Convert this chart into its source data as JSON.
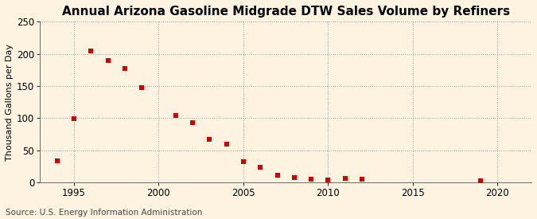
{
  "title": "Annual Arizona Gasoline Midgrade DTW Sales Volume by Refiners",
  "ylabel": "Thousand Gallons per Day",
  "source": "Source: U.S. Energy Information Administration",
  "background_color": "#fdf3e0",
  "marker_color": "#cc0000",
  "years": [
    1994,
    1995,
    1996,
    1997,
    1998,
    1999,
    2001,
    2002,
    2003,
    2004,
    2005,
    2006,
    2007,
    2008,
    2009,
    2010,
    2011,
    2012,
    2019
  ],
  "values": [
    33,
    99,
    204,
    190,
    177,
    148,
    104,
    93,
    67,
    59,
    32,
    24,
    11,
    7,
    5,
    4,
    6,
    5,
    2
  ],
  "xlim": [
    1993,
    2022
  ],
  "ylim": [
    0,
    250
  ],
  "xticks": [
    1995,
    2000,
    2005,
    2010,
    2015,
    2020
  ],
  "yticks": [
    0,
    50,
    100,
    150,
    200,
    250
  ],
  "title_fontsize": 11,
  "label_fontsize": 8,
  "tick_fontsize": 8.5,
  "source_fontsize": 7.5,
  "marker_size": 15
}
